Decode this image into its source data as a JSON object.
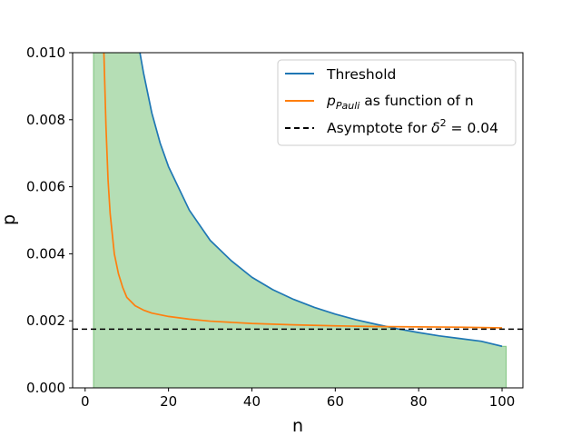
{
  "chart_data": {
    "type": "line",
    "title": "",
    "xlabel": "n",
    "ylabel": "p",
    "xlim": [
      -3,
      105
    ],
    "ylim": [
      0,
      0.01
    ],
    "xticks": [
      0,
      20,
      40,
      60,
      80,
      100
    ],
    "xtick_labels": [
      "0",
      "20",
      "40",
      "60",
      "80",
      "100"
    ],
    "yticks": [
      0,
      0.002,
      0.004,
      0.006,
      0.008,
      0.01
    ],
    "ytick_labels": [
      "0.000",
      "0.002",
      "0.004",
      "0.006",
      "0.008",
      "0.010"
    ],
    "grid": false,
    "legend_position": "top-right",
    "series": [
      {
        "name": "Threshold",
        "color": "#1f77b4",
        "x": [
          2,
          13,
          14,
          16,
          18,
          20,
          25,
          30,
          35,
          40,
          45,
          50,
          55,
          60,
          65,
          70,
          75,
          80,
          85,
          90,
          95,
          100
        ],
        "y": [
          0.0123,
          0.0101,
          0.0094,
          0.0082,
          0.0073,
          0.0066,
          0.0053,
          0.0044,
          0.0038,
          0.0033,
          0.00293,
          0.00264,
          0.0024,
          0.0022,
          0.00203,
          0.00189,
          0.00176,
          0.00165,
          0.00155,
          0.00147,
          0.00139,
          0.00124
        ]
      },
      {
        "name": "p_Pauli as function of n",
        "color": "#ff7f0e",
        "x": [
          4.5,
          5,
          5.5,
          6,
          7,
          8,
          9,
          10,
          12,
          14,
          16,
          20,
          25,
          30,
          40,
          50,
          60,
          70,
          80,
          90,
          100
        ],
        "y": [
          0.01,
          0.0078,
          0.0062,
          0.0052,
          0.004,
          0.0034,
          0.003,
          0.0027,
          0.00245,
          0.00232,
          0.00223,
          0.00213,
          0.00205,
          0.00199,
          0.00192,
          0.00188,
          0.00185,
          0.00183,
          0.00182,
          0.00181,
          0.00179
        ]
      },
      {
        "name": "Asymptote for δ² = 0.04",
        "color": "#000000",
        "style": "dashed",
        "y_const": 0.00175
      }
    ],
    "fill": {
      "color": "#2ca02c",
      "alpha": 0.35,
      "note_series": "Threshold",
      "x_range": [
        2,
        101
      ]
    }
  },
  "legend": {
    "threshold_label": "Threshold",
    "pauli_main": "p",
    "pauli_sub": "Pauli",
    "pauli_rest": " as function of n",
    "asymptote_pre": "Asymptote for ",
    "asymptote_delta": "δ",
    "asymptote_sup": "2",
    "asymptote_post": " = 0.04"
  }
}
